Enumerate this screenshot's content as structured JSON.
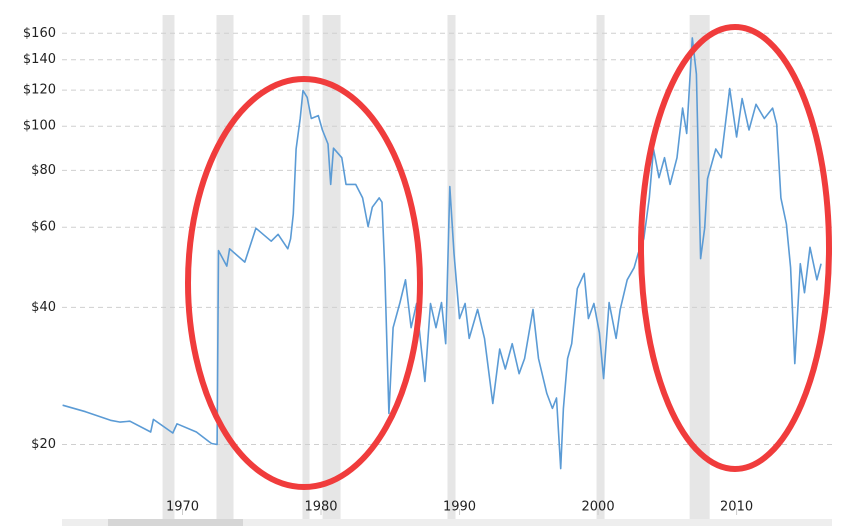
{
  "chart_data": {
    "type": "line",
    "log_scale": true,
    "grid": true,
    "xlim": [
      1961.3,
      2016.6
    ],
    "ylim": [
      14,
      180
    ],
    "xticks": [
      1970,
      1980,
      1990,
      2000,
      2010
    ],
    "yticks": [
      {
        "value": 20,
        "label": "$20"
      },
      {
        "value": 40,
        "label": "$40"
      },
      {
        "value": 60,
        "label": "$60"
      },
      {
        "value": 80,
        "label": "$80"
      },
      {
        "value": 100,
        "label": "$100"
      },
      {
        "value": 120,
        "label": "$120"
      },
      {
        "value": 140,
        "label": "$140"
      },
      {
        "value": 160,
        "label": "$160"
      }
    ],
    "recession_color": "#e6e6e6",
    "recessions": [
      [
        1968.56,
        1969.42
      ],
      [
        1972.45,
        1973.68
      ],
      [
        1978.66,
        1979.17
      ],
      [
        1980.11,
        1981.41
      ],
      [
        1989.13,
        1989.71
      ],
      [
        1999.89,
        2000.47
      ],
      [
        2006.61,
        2008.06
      ]
    ],
    "series": [
      {
        "color": "#5b9bd5",
        "x": [
          1961.34,
          1963.0,
          1964.8,
          1965.5,
          1966.2,
          1967.7,
          1967.9,
          1969.3,
          1969.6,
          1971.0,
          1971.9,
          1972.1,
          1972.5,
          1972.6,
          1973.2,
          1973.4,
          1974.5,
          1975.3,
          1976.4,
          1976.9,
          1977.6,
          1977.8,
          1978.0,
          1978.2,
          1978.5,
          1978.7,
          1979.0,
          1979.3,
          1979.8,
          1980.1,
          1980.5,
          1980.7,
          1980.9,
          1981.5,
          1981.8,
          1982.5,
          1983.0,
          1983.4,
          1983.7,
          1984.2,
          1984.4,
          1984.6,
          1984.9,
          1985.2,
          1985.7,
          1986.1,
          1986.5,
          1986.9,
          1987.2,
          1987.5,
          1987.9,
          1988.3,
          1988.7,
          1989.0,
          1989.3,
          1989.6,
          1990.0,
          1990.4,
          1990.7,
          1991.3,
          1991.8,
          1992.4,
          1992.9,
          1993.3,
          1993.8,
          1994.3,
          1994.7,
          1995.3,
          1995.7,
          1996.3,
          1996.7,
          1997.0,
          1997.3,
          1997.5,
          1997.8,
          1998.1,
          1998.5,
          1999.0,
          1999.3,
          1999.7,
          2000.1,
          2000.4,
          2000.8,
          2001.3,
          2001.6,
          2002.1,
          2002.6,
          2002.9,
          2003.3,
          2003.7,
          2004.0,
          2004.4,
          2004.8,
          2005.2,
          2005.7,
          2006.1,
          2006.4,
          2006.8,
          2007.1,
          2007.4,
          2007.7,
          2007.9,
          2008.5,
          2008.9,
          2009.5,
          2010.0,
          2010.4,
          2010.9,
          2011.4,
          2012.0,
          2012.6,
          2012.9,
          2013.2,
          2013.6,
          2013.9,
          2014.2,
          2014.6,
          2014.9,
          2015.3,
          2015.8,
          2016.1
        ],
        "values": [
          24.4,
          23.6,
          22.6,
          22.4,
          22.5,
          21.3,
          22.7,
          21.2,
          22.2,
          21.3,
          20.3,
          20.1,
          20,
          53.3,
          49.3,
          53.8,
          50.3,
          59.7,
          55.9,
          57.9,
          53.8,
          56.6,
          64.2,
          89.1,
          104,
          119.8,
          115.7,
          104,
          105.5,
          98.1,
          91.4,
          74.5,
          89.5,
          85.3,
          74.5,
          74.5,
          69.6,
          60.2,
          66.4,
          69.6,
          68.1,
          48.9,
          23.4,
          36.1,
          41.0,
          46.0,
          36.1,
          40.8,
          33.3,
          27.5,
          40.8,
          36.1,
          41.0,
          33.3,
          73.7,
          52.6,
          37.8,
          40.8,
          34.2,
          39.6,
          34.2,
          24.6,
          32.4,
          29.3,
          33.3,
          28.6,
          30.9,
          39.6,
          30.9,
          25.9,
          24.0,
          25.3,
          17.7,
          24.0,
          30.9,
          33.3,
          44.0,
          47.5,
          37.8,
          40.8,
          35.2,
          27.9,
          41.0,
          34.2,
          39.6,
          46.0,
          48.9,
          52.6,
          56.6,
          69.6,
          89.1,
          77.1,
          85.3,
          74.5,
          85.3,
          109.6,
          96.4,
          156.3,
          130.2,
          51.2,
          59.8,
          76.6,
          89.1,
          85.3,
          121.0,
          94.7,
          115.0,
          98.1,
          111.7,
          104,
          109.6,
          101,
          69.6,
          61.0,
          48.9,
          30.1,
          49.9,
          43.1,
          54.2,
          46.0,
          49.9
        ]
      }
    ]
  }
}
